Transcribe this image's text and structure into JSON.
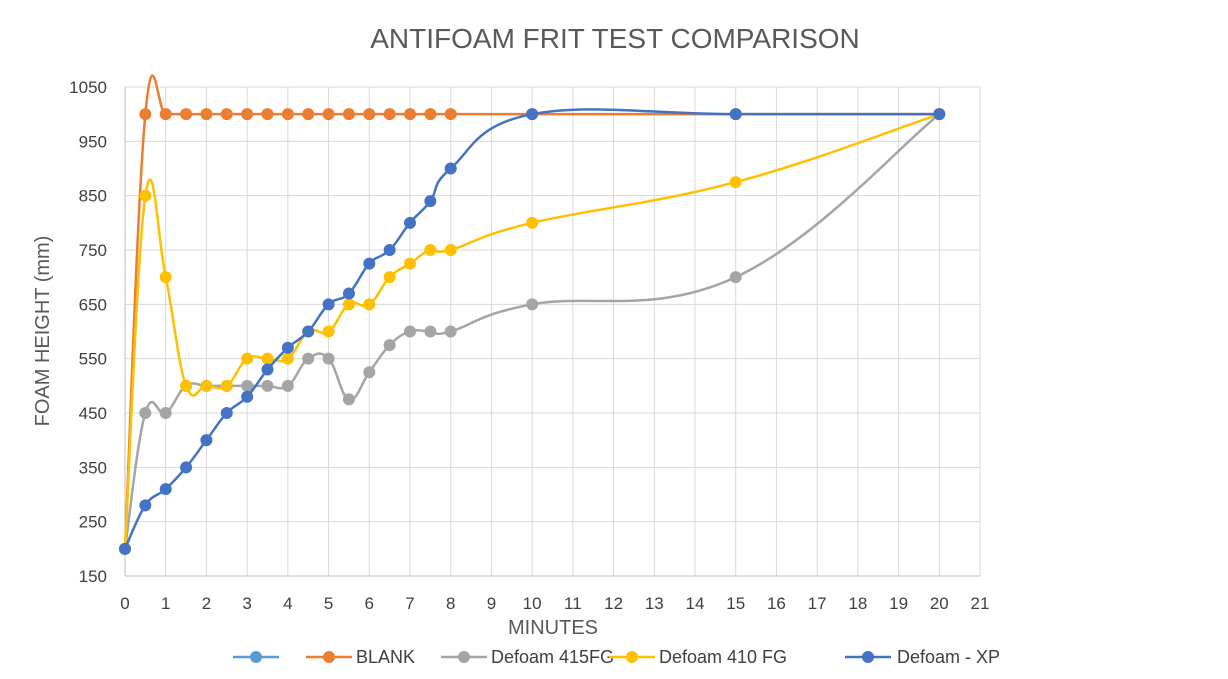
{
  "chart_data": {
    "type": "line",
    "title": "ANTIFOAM FRIT TEST COMPARISON",
    "xlabel": "MINUTES",
    "ylabel": "FOAM HEIGHT (mm)",
    "xlim": [
      0,
      21
    ],
    "ylim": [
      150,
      1050
    ],
    "x_ticks": [
      0,
      1,
      2,
      3,
      4,
      5,
      6,
      7,
      8,
      9,
      10,
      11,
      12,
      13,
      14,
      15,
      16,
      17,
      18,
      19,
      20,
      21
    ],
    "y_ticks": [
      150,
      250,
      350,
      450,
      550,
      650,
      750,
      850,
      950,
      1050
    ],
    "grid": true,
    "legend_position": "bottom",
    "series": [
      {
        "name": "",
        "color": "#5b9bd5",
        "x": [],
        "y": []
      },
      {
        "name": "BLANK",
        "color": "#ed7d31",
        "x": [
          0,
          0.5,
          1,
          1.5,
          2,
          2.5,
          3,
          3.5,
          4,
          4.5,
          5,
          5.5,
          6,
          6.5,
          7,
          7.5,
          8,
          10,
          15,
          20
        ],
        "y": [
          200,
          1000,
          1000,
          1000,
          1000,
          1000,
          1000,
          1000,
          1000,
          1000,
          1000,
          1000,
          1000,
          1000,
          1000,
          1000,
          1000,
          1000,
          1000,
          1000
        ]
      },
      {
        "name": "Defoam 415FG",
        "color": "#a5a5a5",
        "x": [
          0,
          0.5,
          1,
          1.5,
          2,
          2.5,
          3,
          3.5,
          4,
          4.5,
          5,
          5.5,
          6,
          6.5,
          7,
          7.5,
          8,
          10,
          15,
          20
        ],
        "y": [
          200,
          450,
          450,
          500,
          500,
          500,
          500,
          500,
          500,
          550,
          550,
          475,
          525,
          575,
          600,
          600,
          600,
          650,
          700,
          1000
        ]
      },
      {
        "name": "Defoam 410 FG",
        "color": "#ffc000",
        "x": [
          0,
          0.5,
          1,
          1.5,
          2,
          2.5,
          3,
          3.5,
          4,
          4.5,
          5,
          5.5,
          6,
          6.5,
          7,
          7.5,
          8,
          10,
          15,
          20
        ],
        "y": [
          200,
          850,
          700,
          500,
          500,
          500,
          550,
          550,
          550,
          600,
          600,
          650,
          650,
          700,
          725,
          750,
          750,
          800,
          875,
          1000
        ]
      },
      {
        "name": "Defoam - XP",
        "color": "#4472c4",
        "x": [
          0,
          0.5,
          1,
          1.5,
          2,
          2.5,
          3,
          3.5,
          4,
          4.5,
          5,
          5.5,
          6,
          6.5,
          7,
          7.5,
          8,
          10,
          15,
          20
        ],
        "y": [
          200,
          280,
          310,
          350,
          400,
          450,
          480,
          530,
          570,
          600,
          650,
          670,
          725,
          750,
          800,
          840,
          900,
          1000,
          1000,
          1000
        ]
      }
    ]
  }
}
